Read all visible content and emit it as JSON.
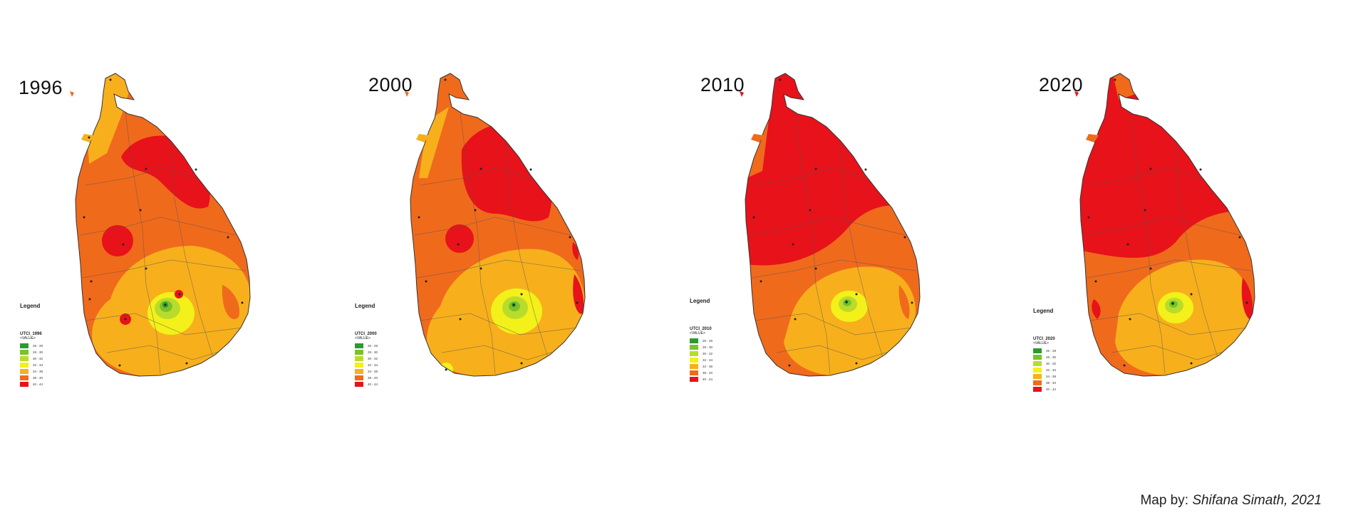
{
  "maps": [
    {
      "year": "1996",
      "legend_field": "UTCI_1996"
    },
    {
      "year": "2000",
      "legend_field": "UTCI_2000"
    },
    {
      "year": "2010",
      "legend_field": "UTCI_2010"
    },
    {
      "year": "2020",
      "legend_field": "UTCI_2020"
    }
  ],
  "legend": {
    "title": "Legend",
    "value_label": "<VALUE>",
    "classes": [
      {
        "color": "#2e9a2e",
        "range": "26 - 28"
      },
      {
        "color": "#79c22a",
        "range": "28 - 30"
      },
      {
        "color": "#b9dc2c",
        "range": "30 - 32"
      },
      {
        "color": "#f4f01a",
        "range": "32 - 34"
      },
      {
        "color": "#f7b01c",
        "range": "34 - 38"
      },
      {
        "color": "#f06a1c",
        "range": "38 - 40"
      },
      {
        "color": "#e8121a",
        "range": "40 - 44"
      }
    ]
  },
  "credit": {
    "prefix": "Map by: ",
    "author": "Shifana Simath, 2021"
  }
}
